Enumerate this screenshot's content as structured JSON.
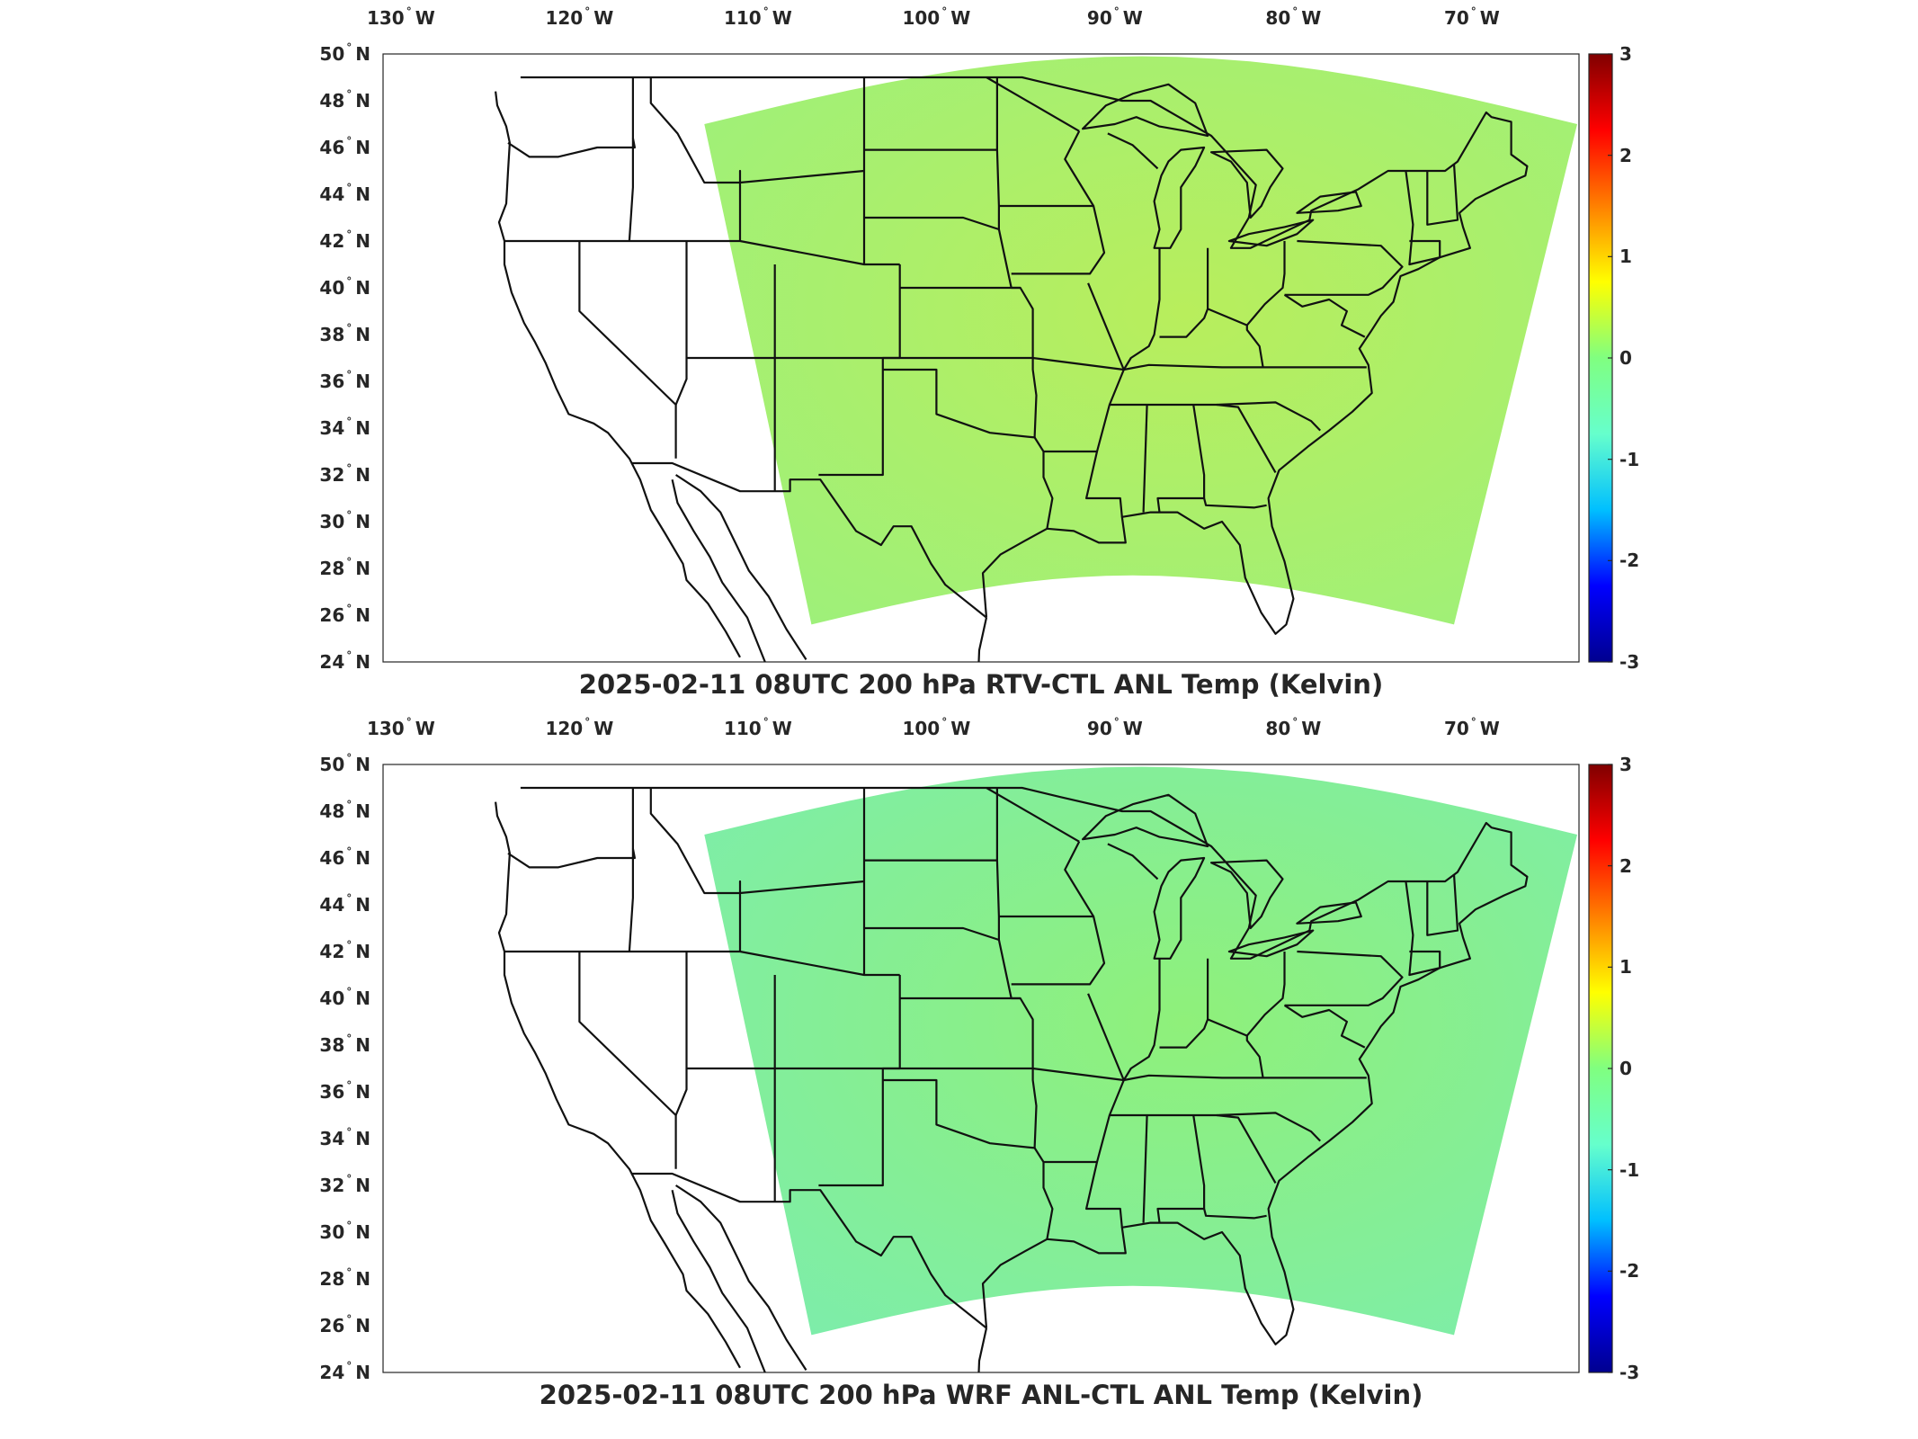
{
  "panels": [
    {
      "title": "2025-02-11 08UTC 200 hPa RTV-CTL ANL Temp (Kelvin)",
      "lon_ticks": [
        "130",
        "120",
        "110",
        "100",
        "90",
        "80",
        "70"
      ],
      "lon_suffix": "W",
      "lat_ticks": [
        "50",
        "48",
        "46",
        "44",
        "42",
        "40",
        "38",
        "36",
        "34",
        "32",
        "30",
        "28",
        "26",
        "24"
      ],
      "lat_suffix": "N",
      "colorbar_ticks": [
        "3",
        "2",
        "1",
        "0",
        "-1",
        "-2",
        "-3"
      ],
      "field_tint": "#b8ee5c"
    },
    {
      "title": "2025-02-11 08UTC 200 hPa WRF ANL-CTL ANL Temp (Kelvin)",
      "lon_ticks": [
        "130",
        "120",
        "110",
        "100",
        "90",
        "80",
        "70"
      ],
      "lon_suffix": "W",
      "lat_ticks": [
        "50",
        "48",
        "46",
        "44",
        "42",
        "40",
        "38",
        "36",
        "34",
        "32",
        "30",
        "28",
        "26",
        "24"
      ],
      "lat_suffix": "N",
      "colorbar_ticks": [
        "3",
        "2",
        "1",
        "0",
        "-1",
        "-2",
        "-3"
      ],
      "field_tint": "#8ff07a"
    }
  ],
  "map": {
    "lon_range": [
      -131,
      -64
    ],
    "lat_range": [
      24,
      50
    ],
    "colorbar_range": [
      -3,
      3
    ],
    "colormap": [
      "#00008f",
      "#0000ff",
      "#00bfff",
      "#66ffcc",
      "#80ff80",
      "#ffff00",
      "#ff8000",
      "#ff0000",
      "#800000"
    ]
  }
}
